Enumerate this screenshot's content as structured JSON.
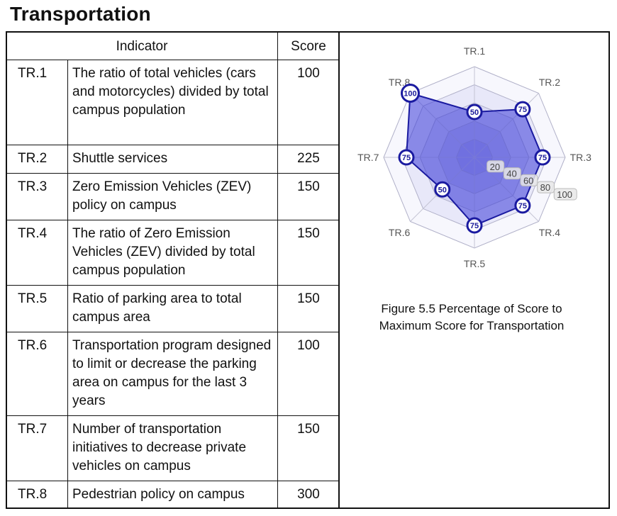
{
  "page": {
    "title": "Transportation"
  },
  "table": {
    "headers": {
      "indicator": "Indicator",
      "score": "Score"
    },
    "rows": [
      {
        "code": "TR.1",
        "description": "The ratio of total vehicles (cars and motorcycles) divided by total campus population",
        "score": "100"
      },
      {
        "code": "TR.2",
        "description": "Shuttle services",
        "score": "225"
      },
      {
        "code": "TR.3",
        "description": "Zero Emission Vehicles (ZEV) policy on campus",
        "score": "150"
      },
      {
        "code": "TR.4",
        "description": "The ratio of Zero Emission Vehicles (ZEV) divided by total campus population",
        "score": "150"
      },
      {
        "code": "TR.5",
        "description": "Ratio of parking area to total campus area",
        "score": "150"
      },
      {
        "code": "TR.6",
        "description": "Transportation program designed to limit or decrease the parking area on campus for the last 3 years",
        "score": "100"
      },
      {
        "code": "TR.7",
        "description": "Number of transportation initiatives to decrease private vehicles on campus",
        "score": "150"
      },
      {
        "code": "TR.8",
        "description": "Pedestrian policy on campus",
        "score": "300"
      }
    ]
  },
  "figure": {
    "caption": "Figure 5.5 Percentage of Score to Maximum Score for Transportation"
  },
  "chart_data": {
    "type": "radar",
    "axes": [
      "TR.1",
      "TR.2",
      "TR.3",
      "TR.4",
      "TR.5",
      "TR.6",
      "TR.7",
      "TR.8"
    ],
    "values": [
      50,
      75,
      75,
      75,
      75,
      50,
      75,
      100
    ],
    "rlim": [
      0,
      100
    ],
    "ring_labels": [
      "20",
      "40",
      "60",
      "80",
      "100"
    ],
    "grid": true,
    "colors": {
      "fill": "#3a3ad8",
      "outline": "#1a1aa0",
      "ring_fill": "#6f6fd8"
    }
  }
}
